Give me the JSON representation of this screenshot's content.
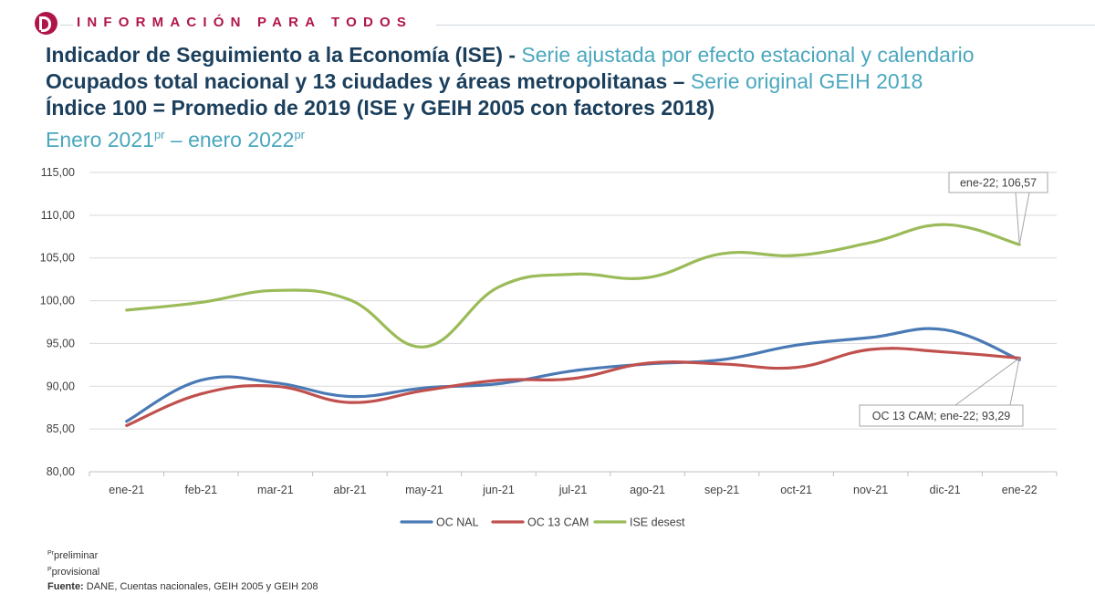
{
  "header": {
    "brand": "INFORMACIÓN PARA TODOS",
    "title_line1_bold": "Indicador de Seguimiento a la Economía (ISE) - ",
    "title_line1_light": "Serie ajustada por efecto estacional y calendario",
    "title_line2_bold": "Ocupados total nacional y 13 ciudades y áreas metropolitanas – ",
    "title_line2_light": "Serie original GEIH 2018",
    "title_line3": "Índice 100 = Promedio de 2019 (ISE y GEIH 2005 con factores 2018)",
    "period_start": "Enero 2021",
    "period_start_sup": "pr",
    "period_sep": " – enero 2022",
    "period_end_sup": "pr"
  },
  "chart_data": {
    "type": "line",
    "categories": [
      "ene-21",
      "feb-21",
      "mar-21",
      "abr-21",
      "may-21",
      "jun-21",
      "jul-21",
      "ago-21",
      "sep-21",
      "oct-21",
      "nov-21",
      "dic-21",
      "ene-22"
    ],
    "y_ticks": [
      "80,00",
      "85,00",
      "90,00",
      "95,00",
      "100,00",
      "105,00",
      "110,00",
      "115,00"
    ],
    "ylim": [
      80,
      115
    ],
    "grid": true,
    "legend_position": "bottom",
    "series": [
      {
        "name": "OC NAL",
        "color": "#4a7ab5",
        "values": [
          85.9,
          90.7,
          90.4,
          88.8,
          89.8,
          90.3,
          91.8,
          92.6,
          93.1,
          94.8,
          95.7,
          96.6,
          93.1
        ]
      },
      {
        "name": "OC 13 CAM",
        "color": "#c0504d",
        "values": [
          85.4,
          89.1,
          90.0,
          88.1,
          89.5,
          90.7,
          90.9,
          92.7,
          92.6,
          92.2,
          94.3,
          94.0,
          93.29
        ]
      },
      {
        "name": "ISE desest",
        "color": "#9bbb59",
        "values": [
          98.9,
          99.8,
          101.2,
          100.1,
          94.6,
          101.6,
          103.1,
          102.7,
          105.5,
          105.3,
          106.8,
          108.9,
          106.57
        ]
      }
    ],
    "annotations": [
      {
        "label": "ene-22;  106,57"
      },
      {
        "label": "OC 13 CAM; ene-22;  93,29"
      }
    ]
  },
  "notes": {
    "line1_sup": "Pr",
    "line1": "preliminar",
    "line2_sup": "P",
    "line2": "provisional",
    "source_label": "Fuente:",
    "source_text": " DANE, Cuentas nacionales, GEIH 2005 y GEIH 208"
  }
}
